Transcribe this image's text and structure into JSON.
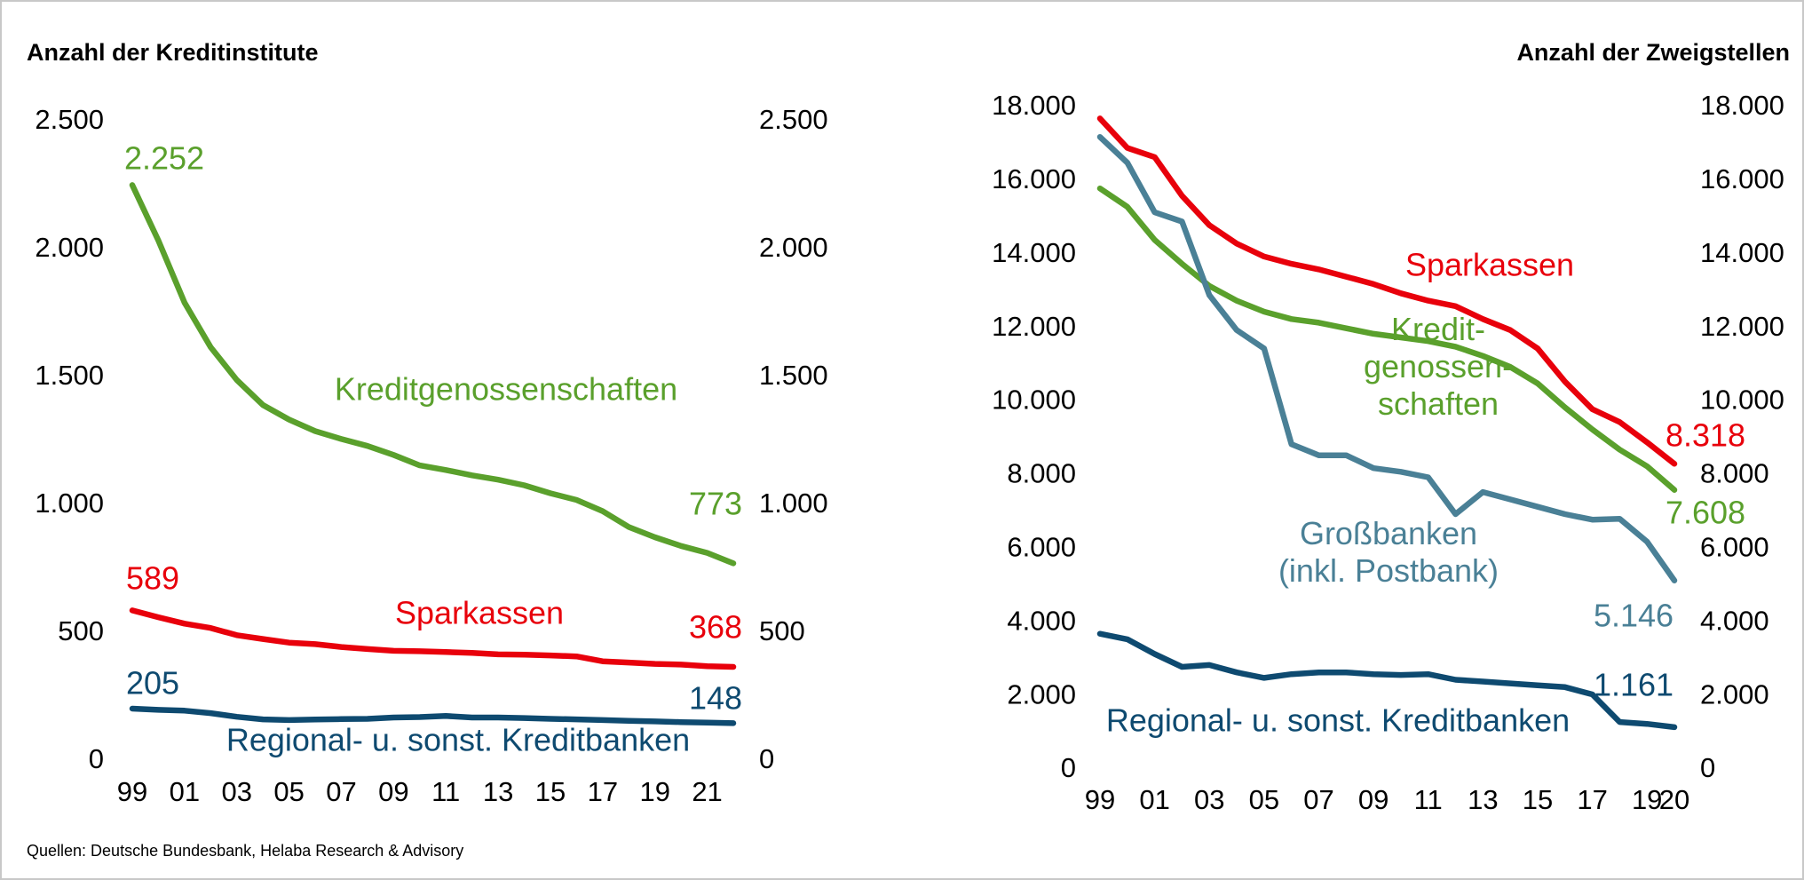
{
  "chart_data": [
    {
      "type": "line",
      "title": "Anzahl der Kreditinstitute",
      "categories": [
        "99",
        null,
        "01",
        null,
        "03",
        null,
        "05",
        null,
        "07",
        null,
        "09",
        null,
        "11",
        null,
        "13",
        null,
        "15",
        null,
        "17",
        null,
        "19",
        null,
        "21",
        null
      ],
      "ylim": [
        0,
        2500
      ],
      "yticks": [
        0,
        {
          "value": 500,
          "label": "500"
        },
        {
          "value": 1000,
          "label": "1.000"
        },
        {
          "value": 1500,
          "label": "1.500"
        },
        {
          "value": 2000,
          "label": "2.000"
        },
        {
          "value": 2500,
          "label": "2.500"
        }
      ],
      "y2lim": [
        0,
        2500
      ],
      "y2ticks": [
        0,
        {
          "value": 500,
          "label": "500"
        },
        {
          "value": 1000,
          "label": "1.000"
        },
        {
          "value": 1500,
          "label": "1.500"
        },
        {
          "value": 2000,
          "label": "2.000"
        },
        {
          "value": 2500,
          "label": "2.500"
        }
      ],
      "series": [
        {
          "name": "Kreditgenossenschaften",
          "color": "#5aa02c",
          "values": [
            2252,
            2035,
            1792,
            1618,
            1490,
            1392,
            1335,
            1290,
            1259,
            1232,
            1197,
            1156,
            1138,
            1117,
            1100,
            1078,
            1047,
            1021,
            977,
            915,
            875,
            841,
            814,
            773
          ],
          "value_labels": [
            "2.252",
            null,
            null,
            null,
            null,
            null,
            null,
            null,
            null,
            null,
            null,
            null,
            null,
            null,
            null,
            null,
            null,
            null,
            null,
            null,
            null,
            null,
            null,
            "773"
          ]
        },
        {
          "name": "Sparkassen",
          "color": "#e8000b",
          "values": [
            589,
            562,
            537,
            520,
            492,
            477,
            463,
            457,
            446,
            438,
            431,
            429,
            426,
            423,
            417,
            416,
            413,
            409,
            390,
            385,
            380,
            377,
            371,
            368
          ],
          "value_labels": [
            "589",
            null,
            null,
            null,
            null,
            null,
            null,
            null,
            null,
            null,
            null,
            null,
            null,
            null,
            null,
            null,
            null,
            null,
            null,
            null,
            null,
            null,
            null,
            "368"
          ]
        },
        {
          "name": "Regional- u. sonst. Kreditbanken",
          "color": "#0e4a70",
          "values": [
            205,
            200,
            197,
            187,
            173,
            163,
            160,
            162,
            164,
            165,
            170,
            172,
            176,
            170,
            170,
            168,
            165,
            163,
            160,
            157,
            155,
            152,
            150,
            148
          ],
          "value_labels": [
            "205",
            null,
            null,
            null,
            null,
            null,
            null,
            null,
            null,
            null,
            null,
            null,
            null,
            null,
            null,
            null,
            null,
            null,
            null,
            null,
            null,
            null,
            null,
            "148"
          ]
        }
      ]
    },
    {
      "type": "line",
      "title": "Anzahl der Zweigstellen",
      "categories": [
        "99",
        null,
        "01",
        null,
        "03",
        null,
        "05",
        null,
        "07",
        null,
        "09",
        null,
        "11",
        null,
        "13",
        null,
        "15",
        null,
        "17",
        null,
        "19",
        "20"
      ],
      "ylim": [
        0,
        18000
      ],
      "yticks": [
        0,
        {
          "value": 2000,
          "label": "2.000"
        },
        {
          "value": 4000,
          "label": "4.000"
        },
        {
          "value": 6000,
          "label": "6.000"
        },
        {
          "value": 8000,
          "label": "8.000"
        },
        {
          "value": 10000,
          "label": "10.000"
        },
        {
          "value": 12000,
          "label": "12.000"
        },
        {
          "value": 14000,
          "label": "14.000"
        },
        {
          "value": 16000,
          "label": "16.000"
        },
        {
          "value": 18000,
          "label": "18.000"
        }
      ],
      "y2lim": [
        0,
        18000
      ],
      "y2ticks": [
        0,
        {
          "value": 2000,
          "label": "2.000"
        },
        {
          "value": 4000,
          "label": "4.000"
        },
        {
          "value": 6000,
          "label": "6.000"
        },
        {
          "value": 8000,
          "label": "8.000"
        },
        {
          "value": 10000,
          "label": "10.000"
        },
        {
          "value": 12000,
          "label": "12.000"
        },
        {
          "value": 14000,
          "label": "14.000"
        },
        {
          "value": 16000,
          "label": "16.000"
        },
        {
          "value": 18000,
          "label": "18.000"
        }
      ],
      "series": [
        {
          "name": "Sparkassen",
          "color": "#e8000b",
          "values": [
            17700,
            16900,
            16650,
            15600,
            14800,
            14300,
            13950,
            13750,
            13600,
            13400,
            13200,
            12950,
            12750,
            12600,
            12250,
            11950,
            11450,
            10550,
            9800,
            9450,
            8900,
            8318
          ],
          "value_labels": [
            null,
            null,
            null,
            null,
            null,
            null,
            null,
            null,
            null,
            null,
            null,
            null,
            null,
            null,
            null,
            null,
            null,
            null,
            null,
            null,
            null,
            "8.318"
          ]
        },
        {
          "name": "Kredit-\ngenossen-\nschaften",
          "color": "#5aa02c",
          "values": [
            15800,
            15300,
            14400,
            13750,
            13150,
            12750,
            12450,
            12250,
            12150,
            12000,
            11850,
            11750,
            11650,
            11500,
            11250,
            10950,
            10500,
            9850,
            9250,
            8700,
            8250,
            7608
          ],
          "value_labels": [
            null,
            null,
            null,
            null,
            null,
            null,
            null,
            null,
            null,
            null,
            null,
            null,
            null,
            null,
            null,
            null,
            null,
            null,
            null,
            null,
            null,
            "7.608"
          ]
        },
        {
          "name": "Großbanken\n(inkl. Postbank)",
          "color": "#4a8096",
          "values": [
            17200,
            16500,
            15150,
            14900,
            12900,
            11950,
            11450,
            8850,
            8550,
            8550,
            8200,
            8100,
            7950,
            6950,
            7550,
            7350,
            7150,
            6950,
            6800,
            6820,
            6200,
            5146
          ],
          "value_labels": [
            null,
            null,
            null,
            null,
            null,
            null,
            null,
            null,
            null,
            null,
            null,
            null,
            null,
            null,
            null,
            null,
            null,
            null,
            null,
            null,
            null,
            "5.146"
          ]
        },
        {
          "name": "Regional- u. sonst. Kreditbanken",
          "color": "#0e4a70",
          "values": [
            3700,
            3550,
            3150,
            2800,
            2850,
            2650,
            2500,
            2600,
            2650,
            2650,
            2600,
            2580,
            2600,
            2450,
            2400,
            2350,
            2300,
            2250,
            2050,
            1300,
            1250,
            1161
          ],
          "value_labels": [
            null,
            null,
            null,
            null,
            null,
            null,
            null,
            null,
            null,
            null,
            null,
            null,
            null,
            null,
            null,
            null,
            null,
            null,
            null,
            null,
            null,
            "1.161"
          ]
        }
      ]
    }
  ],
  "source": "Quellen: Deutsche Bundesbank, Helaba Research & Advisory"
}
